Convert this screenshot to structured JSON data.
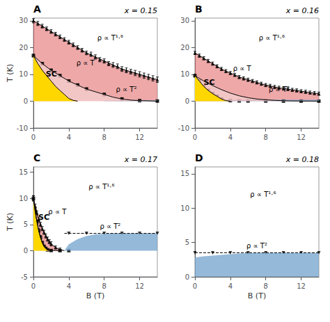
{
  "chart_data": [
    {
      "type": "area",
      "title": "A",
      "subtitle": "x = 0.15",
      "ylabel": "T (K)",
      "xlim": [
        0,
        14
      ],
      "xticks": [
        0,
        4,
        8,
        12
      ],
      "ylim": [
        -10,
        31
      ],
      "yticks": [
        -10,
        0,
        10,
        20,
        30
      ],
      "grid": false,
      "annotations": [
        "ρ ∝ T¹·⁶",
        "ρ ∝ T",
        "ρ ∝ T²",
        "SC"
      ],
      "series": [
        {
          "type": "area",
          "color": "#7BA7D0",
          "x": [
            8,
            9,
            10,
            11,
            12,
            13,
            14
          ],
          "values": [
            0.15,
            0.2,
            0.25,
            0.3,
            0.3,
            0.3,
            0.3
          ]
        },
        {
          "type": "band",
          "color": "#E06060",
          "line_style": "solid",
          "x": [
            0,
            1,
            2,
            3,
            4,
            5,
            6,
            7,
            8,
            9,
            10,
            11,
            12,
            13,
            14
          ],
          "values": [
            30,
            28,
            26,
            24,
            22,
            20,
            18,
            16.5,
            15,
            13.5,
            12,
            11,
            10,
            9,
            8
          ],
          "lower_x": [
            0,
            1,
            2,
            3,
            4,
            5,
            6,
            7,
            8,
            9,
            10,
            11,
            12,
            13,
            14
          ],
          "lower": [
            17,
            14,
            11.5,
            9.5,
            7.5,
            6.0,
            4.5,
            3.5,
            2.5,
            1.5,
            0.8,
            0.4,
            0.2,
            0.1,
            0.0
          ]
        },
        {
          "type": "area",
          "color": "#F0B8B8",
          "x": [
            0,
            1,
            2,
            3,
            4,
            5,
            6,
            7,
            8,
            9,
            10,
            11,
            12,
            13,
            14
          ],
          "values": [
            17,
            14,
            11.5,
            9.5,
            7.5,
            6.0,
            4.5,
            3.5,
            2.5,
            1.5,
            0.8,
            0.4,
            0.2,
            0.1,
            0.0
          ]
        },
        {
          "type": "area",
          "color": "#FFD700",
          "line_style": "solid",
          "x": [
            0,
            0.5,
            1.0,
            1.5,
            2.0,
            2.5,
            3.0,
            3.5,
            4.0,
            4.5,
            5.0
          ],
          "values": [
            17,
            14,
            11.5,
            9.5,
            7.5,
            5.5,
            4.0,
            2.5,
            1.0,
            0.3,
            0.0
          ]
        },
        {
          "type": "scatter",
          "marker": "square",
          "color": "#000000",
          "x": [
            0,
            1.0,
            2.0,
            3.0,
            4.0,
            5.0,
            6.0,
            8.0,
            10.0,
            12.0,
            14.0
          ],
          "values": [
            17,
            14,
            11.5,
            9.5,
            7.5,
            6.0,
            4.5,
            2.5,
            0.8,
            0.2,
            0.05
          ],
          "errors": [
            0.5,
            0.5,
            0.5,
            0.5,
            0.5,
            0.5,
            0.5,
            0.5,
            0.5,
            0.3,
            0.3
          ]
        },
        {
          "type": "scatter",
          "marker": "triangle",
          "color": "#000000",
          "x": [
            0,
            0.5,
            1,
            1.5,
            2,
            2.5,
            3,
            3.5,
            4,
            4.5,
            5,
            5.5,
            6,
            6.5,
            7,
            7.5,
            8,
            8.5,
            9,
            9.5,
            10,
            10.5,
            11,
            11.5,
            12,
            12.5,
            13,
            13.5,
            14
          ],
          "values": [
            30,
            29,
            28,
            27,
            26,
            25,
            24,
            23,
            22,
            21,
            20,
            19,
            18,
            17.5,
            16.5,
            15.5,
            15,
            14,
            13.5,
            13,
            12,
            11.5,
            11,
            10.5,
            10,
            9.5,
            9,
            8.5,
            8
          ],
          "errors": [
            0.8,
            0.8,
            0.7,
            0.7,
            0.7,
            0.7,
            0.7,
            0.7,
            0.7,
            0.7,
            0.7,
            0.7,
            0.7,
            0.8,
            0.8,
            0.8,
            0.8,
            0.8,
            0.9,
            0.9,
            0.9,
            0.9,
            0.9,
            1.0,
            1.0,
            1.0,
            1.0,
            1.0,
            1.0
          ]
        }
      ]
    },
    {
      "type": "area",
      "title": "B",
      "subtitle": "x = 0.16",
      "xlim": [
        0,
        14
      ],
      "xticks": [
        0,
        4,
        8,
        12
      ],
      "ylim": [
        -10,
        31
      ],
      "yticks": [
        -10,
        0,
        10,
        20,
        30
      ],
      "grid": false,
      "annotations": [
        "ρ ∝ T¹·⁶",
        "ρ ∝ T",
        "ρ ∝ T²",
        "SC"
      ],
      "series": [
        {
          "type": "area",
          "color": "#7BA7D0",
          "x": [
            0,
            1,
            2,
            3,
            4,
            5,
            6,
            7,
            8,
            9,
            10,
            11,
            12,
            13,
            14
          ],
          "values": [
            0.3,
            0.4,
            0.5,
            0.5,
            0.5,
            0.5,
            0.5,
            0.5,
            0.5,
            0.5,
            0.5,
            0.5,
            0.5,
            0.5,
            0.5
          ]
        },
        {
          "type": "band",
          "color": "#E06060",
          "line_style": "solid",
          "x": [
            0,
            0.5,
            1,
            1.5,
            2,
            2.5,
            3,
            3.5,
            4,
            4.5,
            5,
            5.5,
            6,
            6.5,
            7,
            7.5,
            8,
            8.5,
            9,
            9.5,
            10,
            10.5,
            11,
            11.5,
            12,
            12.5,
            13,
            13.5,
            14
          ],
          "values": [
            18,
            17,
            16,
            15,
            14,
            13,
            12,
            11.2,
            10.5,
            9.8,
            9,
            8.5,
            8,
            7.5,
            7,
            6.5,
            6,
            5.7,
            5.3,
            5.0,
            4.7,
            4.5,
            4.2,
            4.0,
            3.7,
            3.5,
            3.2,
            3.0,
            2.8
          ],
          "lower_x": [
            0,
            1,
            2,
            3,
            4,
            5,
            6,
            7,
            8,
            9,
            10,
            11,
            12,
            13,
            14
          ],
          "lower": [
            9.5,
            7.5,
            5.8,
            4.3,
            3.0,
            2.0,
            1.3,
            0.8,
            0.5,
            0.3,
            0.15,
            0.08,
            0.04,
            0.02,
            0.01
          ]
        },
        {
          "type": "area",
          "color": "#F0B8B8",
          "x": [
            0,
            1,
            2,
            3,
            4,
            5,
            6,
            7,
            8,
            9,
            10,
            11,
            12,
            13,
            14
          ],
          "values": [
            9.5,
            7.5,
            5.8,
            4.3,
            3.0,
            2.0,
            1.3,
            0.8,
            0.5,
            0.3,
            0.15,
            0.08,
            0.04,
            0.02,
            0.01
          ]
        },
        {
          "type": "area",
          "color": "#FFD700",
          "line_style": "solid",
          "x": [
            0,
            0.5,
            1.0,
            1.5,
            2.0,
            2.5,
            3.0,
            3.5,
            4.0
          ],
          "values": [
            9.5,
            7.5,
            5.5,
            4.0,
            2.8,
            1.8,
            0.8,
            0.2,
            0.0
          ]
        },
        {
          "type": "scatter",
          "marker": "square",
          "color": "#000000",
          "x": [
            0,
            0.5,
            1.0,
            1.5,
            2.0,
            2.5,
            3.0,
            4.0,
            5.0,
            6.0,
            8.0,
            10.0,
            12.0,
            14.0
          ],
          "values": [
            9.5,
            7.5,
            5.5,
            4.0,
            2.8,
            1.8,
            0.8,
            0.2,
            0.1,
            0.06,
            0.04,
            0.02,
            0.01,
            0.0
          ],
          "errors": [
            0.5,
            0.5,
            0.5,
            0.4,
            0.4,
            0.4,
            0.3,
            0.2,
            0.1,
            0.1,
            0.05,
            0.05,
            0.05,
            0.05
          ]
        },
        {
          "type": "scatter",
          "marker": "triangle",
          "color": "#000000",
          "x": [
            0,
            0.5,
            1,
            1.5,
            2,
            2.5,
            3,
            3.5,
            4,
            4.5,
            5,
            5.5,
            6,
            6.5,
            7,
            7.5,
            8,
            8.5,
            9,
            9.5,
            10,
            10.5,
            11,
            11.5,
            12,
            12.5,
            13,
            13.5,
            14
          ],
          "values": [
            18,
            17,
            16,
            15,
            14,
            13,
            12,
            11.2,
            10.5,
            9.8,
            9,
            8.5,
            8,
            7.5,
            7,
            6.5,
            6,
            5.7,
            5.3,
            5.0,
            4.7,
            4.5,
            4.2,
            4.0,
            3.7,
            3.5,
            3.2,
            3.0,
            2.8
          ],
          "errors": [
            0.6,
            0.6,
            0.6,
            0.6,
            0.6,
            0.6,
            0.6,
            0.6,
            0.6,
            0.6,
            0.6,
            0.6,
            0.6,
            0.6,
            0.6,
            0.6,
            0.6,
            0.6,
            0.6,
            0.6,
            0.6,
            0.6,
            0.6,
            0.6,
            0.6,
            0.6,
            0.6,
            0.6,
            0.6
          ]
        }
      ]
    },
    {
      "type": "area",
      "title": "C",
      "subtitle": "x = 0.17",
      "xlabel": "B (T)",
      "ylabel": "T (K)",
      "xlim": [
        0,
        14
      ],
      "xticks": [
        0,
        4,
        8,
        12
      ],
      "ylim": [
        -5,
        16
      ],
      "yticks": [
        -5,
        0,
        5,
        10,
        15
      ],
      "grid": false,
      "annotations": [
        "ρ ∝ T¹·⁶",
        "ρ ∝ T",
        "ρ ∝ T²",
        "SC"
      ],
      "series": [
        {
          "type": "area",
          "color": "#7BA7D0",
          "x": [
            3.5,
            4.0,
            5.0,
            6.0,
            7.0,
            8.0,
            9.0,
            10.0,
            11.0,
            12.0,
            13.0,
            14.0
          ],
          "values": [
            0.0,
            1.2,
            2.2,
            2.8,
            3.1,
            3.2,
            3.3,
            3.3,
            3.3,
            3.3,
            3.3,
            3.3
          ]
        },
        {
          "type": "band",
          "color": "#E06060",
          "line_style": "solid",
          "x": [
            0,
            0.2,
            0.4,
            0.6,
            0.8,
            1.0,
            1.2,
            1.4,
            1.6,
            1.8,
            2.0,
            2.5,
            3.0,
            3.5
          ],
          "values": [
            10,
            8.5,
            7.2,
            6.0,
            5.0,
            4.2,
            3.5,
            2.8,
            2.2,
            1.7,
            1.3,
            0.6,
            0.2,
            0.0
          ],
          "lower_x": [
            0,
            0.2,
            0.4,
            0.6,
            0.8,
            1.0,
            1.2,
            1.4,
            1.6,
            1.8,
            2.0,
            2.5,
            3.0
          ],
          "lower": [
            10,
            7.5,
            5.5,
            3.8,
            2.5,
            1.5,
            0.8,
            0.4,
            0.15,
            0.05,
            0.02,
            0.01,
            0.0
          ]
        },
        {
          "type": "area",
          "color": "#F0B8B8",
          "x": [
            0,
            0.2,
            0.4,
            0.6,
            0.8,
            1.0,
            1.2,
            1.4,
            1.6,
            1.8,
            2.0,
            2.5,
            3.0
          ],
          "values": [
            10,
            7.5,
            5.5,
            3.8,
            2.5,
            1.5,
            0.8,
            0.4,
            0.15,
            0.05,
            0.02,
            0.01,
            0.0
          ]
        },
        {
          "type": "area",
          "color": "#FFD700",
          "line_style": "solid",
          "x": [
            0,
            0.2,
            0.4,
            0.6,
            0.8,
            1.0,
            1.2,
            1.4,
            1.6,
            1.8,
            2.0
          ],
          "values": [
            10,
            7.5,
            5.5,
            3.8,
            2.5,
            1.5,
            0.8,
            0.4,
            0.15,
            0.05,
            0.0
          ]
        },
        {
          "type": "scatter",
          "marker": "square",
          "color": "#000000",
          "x": [
            0,
            0.2,
            0.4,
            0.6,
            0.8,
            1.0,
            1.2,
            1.4,
            1.6,
            2.0,
            3.0,
            4.0
          ],
          "values": [
            10,
            7.5,
            5.5,
            3.8,
            2.5,
            1.5,
            0.8,
            0.4,
            0.15,
            0.02,
            0.0,
            0.0
          ],
          "errors": [
            0.5,
            0.4,
            0.4,
            0.4,
            0.4,
            0.3,
            0.3,
            0.3,
            0.2,
            0.1,
            0.05,
            0.05
          ]
        },
        {
          "type": "scatter",
          "marker": "triangle",
          "color": "#000000",
          "x": [
            0,
            0.2,
            0.4,
            0.6,
            0.8,
            1.0,
            1.2,
            1.4,
            1.6,
            1.8,
            2.0,
            2.5,
            3.0
          ],
          "values": [
            10,
            8.5,
            7.2,
            6.0,
            5.0,
            4.2,
            3.5,
            2.8,
            2.2,
            1.7,
            1.3,
            0.6,
            0.2
          ],
          "errors": [
            0.5,
            0.4,
            0.4,
            0.4,
            0.4,
            0.4,
            0.4,
            0.4,
            0.4,
            0.4,
            0.4,
            0.3,
            0.3
          ]
        },
        {
          "type": "scatter",
          "marker": "triangle_down",
          "color": "#000000",
          "x": [
            4.0,
            6.0,
            8.0,
            10.0,
            12.0,
            14.0
          ],
          "values": [
            3.3,
            3.3,
            3.3,
            3.3,
            3.3,
            3.3
          ]
        },
        {
          "type": "hline",
          "line_style": "dashed",
          "color": "#000000",
          "value": 3.3,
          "from": 3.5
        }
      ]
    },
    {
      "type": "area",
      "title": "D",
      "subtitle": "x = 0.18",
      "xlabel": "B (T)",
      "xlim": [
        0,
        14
      ],
      "xticks": [
        0,
        4,
        8,
        12
      ],
      "ylim": [
        0,
        16
      ],
      "yticks": [
        0,
        5,
        10,
        15
      ],
      "grid": false,
      "annotations": [
        "ρ ∝ T¹·⁶",
        "ρ ∝ T²"
      ],
      "series": [
        {
          "type": "area",
          "color": "#7BA7D0",
          "x": [
            0,
            1,
            2,
            3,
            4,
            5,
            6,
            7,
            8,
            9,
            10,
            11,
            12,
            13,
            14
          ],
          "values": [
            2.8,
            3.0,
            3.1,
            3.2,
            3.3,
            3.4,
            3.45,
            3.5,
            3.5,
            3.5,
            3.5,
            3.5,
            3.5,
            3.5,
            3.5
          ]
        },
        {
          "type": "hline",
          "line_style": "dashed",
          "color": "#000000",
          "value": 3.5
        },
        {
          "type": "scatter",
          "marker": "triangle_down",
          "color": "#000000",
          "x": [
            0,
            2,
            4,
            6,
            8,
            10,
            12,
            14
          ],
          "values": [
            3.5,
            3.5,
            3.5,
            3.5,
            3.5,
            3.5,
            3.5,
            3.5
          ]
        }
      ]
    }
  ]
}
